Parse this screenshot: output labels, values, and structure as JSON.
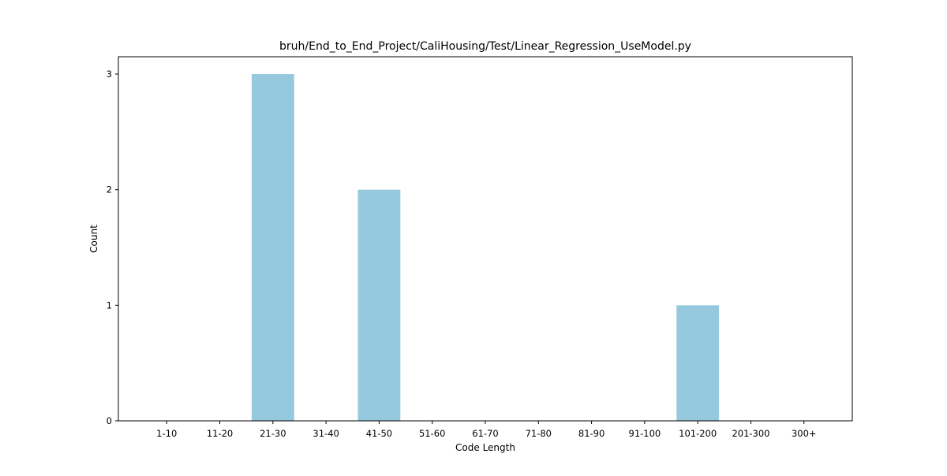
{
  "chart_data": {
    "type": "bar",
    "title": "bruh/End_to_End_Project/CaliHousing/Test/Linear_Regression_UseModel.py",
    "xlabel": "Code Length",
    "ylabel": "Count",
    "categories": [
      "1-10",
      "11-20",
      "21-30",
      "31-40",
      "41-50",
      "51-60",
      "61-70",
      "71-80",
      "81-90",
      "91-100",
      "101-200",
      "201-300",
      "300+"
    ],
    "values": [
      0,
      0,
      3,
      0,
      2,
      0,
      0,
      0,
      0,
      0,
      1,
      0,
      0
    ],
    "ylim": [
      0,
      3.15
    ],
    "yticks": [
      0,
      1,
      2,
      3
    ],
    "bar_color": "#96c9dd",
    "grid": false,
    "legend": "none"
  }
}
